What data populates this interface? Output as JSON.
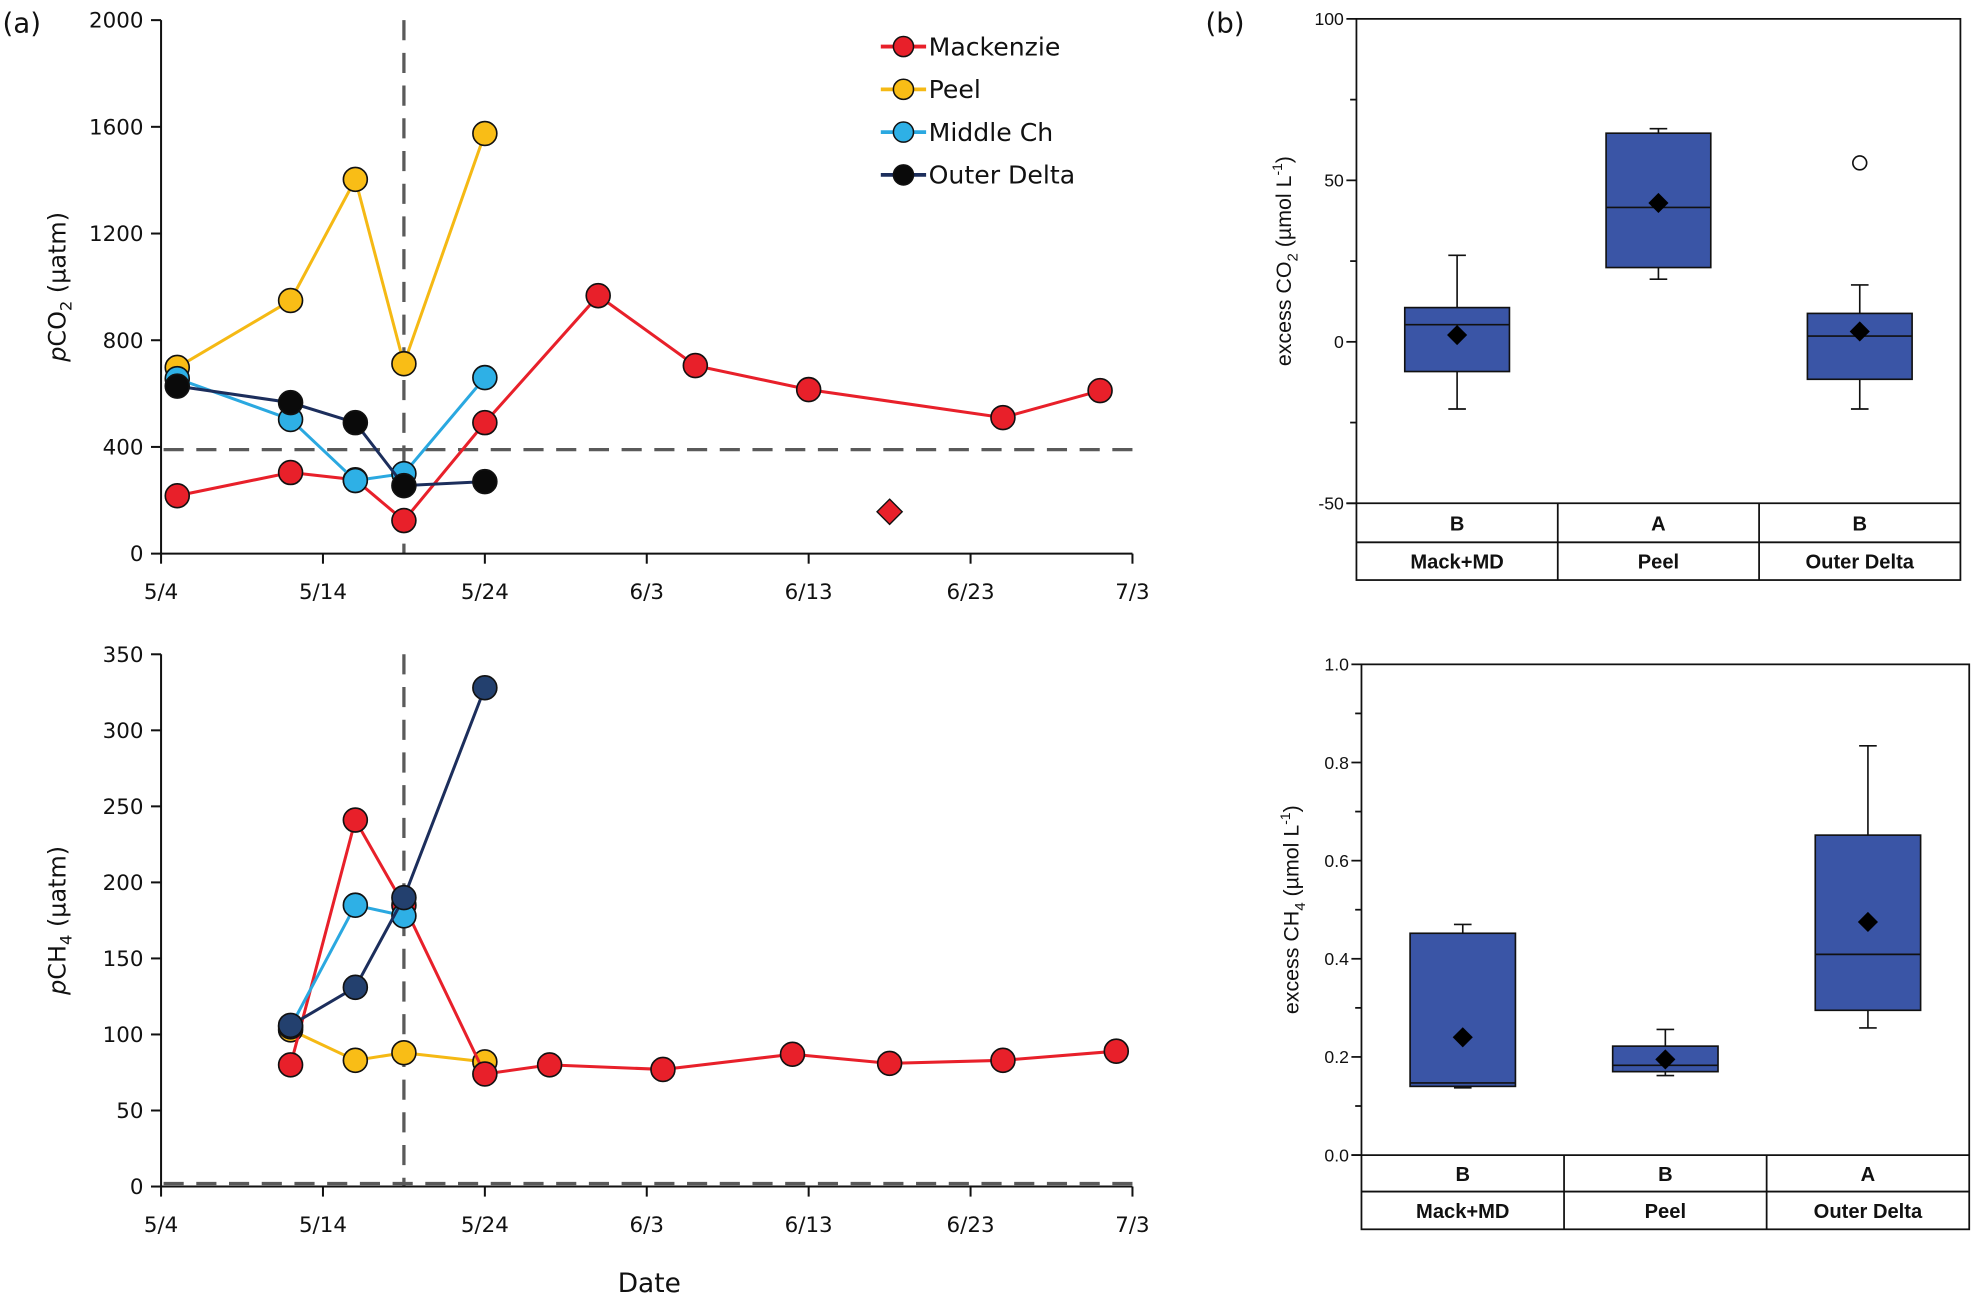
{
  "figure": {
    "panel_a_label": "(a)",
    "panel_b_label": "(b)",
    "shared_xlabel": "Date"
  },
  "chart_data": [
    {
      "id": "pco2",
      "type": "line",
      "title": "",
      "xlabel": "",
      "ylabel_prefix": "p",
      "ylabel_main": "CO",
      "ylabel_sub": "2",
      "ylabel_suffix": " (µatm)",
      "xlim_days": [
        0,
        60
      ],
      "x_origin": "5/4",
      "xticks": [
        {
          "day": 0,
          "label": "5/4"
        },
        {
          "day": 10,
          "label": "5/14"
        },
        {
          "day": 20,
          "label": "5/24"
        },
        {
          "day": 30,
          "label": "6/3"
        },
        {
          "day": 40,
          "label": "6/13"
        },
        {
          "day": 50,
          "label": "6/23"
        },
        {
          "day": 60,
          "label": "7/3"
        }
      ],
      "ylim": [
        0,
        2000
      ],
      "yticks": [
        0,
        400,
        800,
        1200,
        1600,
        2000
      ],
      "grid": false,
      "reference_lines": {
        "horizontal": 390,
        "vertical_day": 15
      },
      "legend": {
        "position": "top-right",
        "entries": [
          "Mackenzie",
          "Peel",
          "Middle Ch",
          "Outer Delta"
        ]
      },
      "series": [
        {
          "name": "Mackenzie",
          "color": "#e8202a",
          "line": "#e8202a",
          "points": [
            [
              1,
              217
            ],
            [
              8,
              304
            ],
            [
              12,
              277
            ],
            [
              15,
              124
            ],
            [
              20,
              491
            ],
            [
              27,
              967
            ],
            [
              33,
              705
            ],
            [
              40,
              615
            ],
            [
              52,
              510
            ],
            [
              58,
              611
            ]
          ]
        },
        {
          "name": "Peel",
          "color": "#f9bd16",
          "line": "#f5b914",
          "points": [
            [
              1,
              698
            ],
            [
              8,
              949
            ],
            [
              12,
              1403
            ],
            [
              15,
              712
            ],
            [
              20,
              1575
            ]
          ]
        },
        {
          "name": "Middle Ch",
          "color": "#2eb0e6",
          "line": "#2aa8e0",
          "points": [
            [
              1,
              656
            ],
            [
              8,
              503
            ],
            [
              12,
              274
            ],
            [
              15,
              300
            ],
            [
              20,
              660
            ]
          ]
        },
        {
          "name": "Outer Delta",
          "color": "#0a0a0a",
          "line": "#1c2e5c",
          "points": [
            [
              1,
              628
            ],
            [
              8,
              566
            ],
            [
              12,
              491
            ],
            [
              15,
              255
            ],
            [
              20,
              270
            ]
          ]
        }
      ],
      "extra_markers": [
        {
          "name": "Mackenzie diamond",
          "shape": "diamond",
          "color": "#e8202a",
          "day": 45,
          "value": 157
        }
      ]
    },
    {
      "id": "pch4",
      "type": "line",
      "title": "",
      "xlabel": "Date",
      "ylabel_prefix": "p",
      "ylabel_main": "CH",
      "ylabel_sub": "4",
      "ylabel_suffix": " (µatm)",
      "xlim_days": [
        0,
        60
      ],
      "x_origin": "5/4",
      "xticks": [
        {
          "day": 0,
          "label": "5/4"
        },
        {
          "day": 10,
          "label": "5/14"
        },
        {
          "day": 20,
          "label": "5/24"
        },
        {
          "day": 30,
          "label": "6/3"
        },
        {
          "day": 40,
          "label": "6/13"
        },
        {
          "day": 50,
          "label": "6/23"
        },
        {
          "day": 60,
          "label": "7/3"
        }
      ],
      "ylim": [
        0,
        350
      ],
      "yticks": [
        0,
        50,
        100,
        150,
        200,
        250,
        300,
        350
      ],
      "grid": false,
      "reference_lines": {
        "horizontal": 2,
        "vertical_day": 15
      },
      "series": [
        {
          "name": "Peel",
          "color": "#f9bd16",
          "line": "#f5b914",
          "points": [
            [
              8,
              103
            ],
            [
              12,
              83
            ],
            [
              15,
              88
            ],
            [
              20,
              82
            ]
          ]
        },
        {
          "name": "Mackenzie",
          "color": "#e8202a",
          "line": "#e8202a",
          "points": [
            [
              8,
              80
            ],
            [
              12,
              241
            ],
            [
              15,
              185
            ],
            [
              20,
              74
            ],
            [
              24,
              80
            ],
            [
              31,
              77
            ],
            [
              39,
              87
            ],
            [
              45,
              81
            ],
            [
              52,
              83
            ],
            [
              59,
              89
            ]
          ]
        },
        {
          "name": "Middle Ch",
          "color": "#2eb0e6",
          "line": "#2aa8e0",
          "points": [
            [
              8,
              105
            ],
            [
              12,
              185
            ],
            [
              15,
              178
            ]
          ]
        },
        {
          "name": "Outer Delta",
          "color": "#23406e",
          "line": "#1c2e5c",
          "points": [
            [
              8,
              106
            ],
            [
              12,
              131
            ],
            [
              15,
              190
            ],
            [
              20,
              328
            ]
          ]
        }
      ]
    },
    {
      "id": "excess_co2",
      "type": "box",
      "ylabel_main": "excess CO",
      "ylabel_sub": "2",
      "ylabel_suffix": " (µmol L",
      "ylabel_sup": "-1",
      "ylabel_close": ")",
      "ylim": [
        -50,
        100
      ],
      "yticks": [
        -50,
        0,
        50,
        100
      ],
      "minor_step": 25,
      "box_color": "#3a55a6",
      "categories": [
        "Mack+MD",
        "Peel",
        "Outer Delta"
      ],
      "letters": [
        "B",
        "A",
        "B"
      ],
      "boxes": [
        {
          "whisker_low": -20.8,
          "q1": -9.2,
          "median": 5.3,
          "q3": 10.6,
          "whisker_high": 26.8,
          "mean": 2.1,
          "outliers": []
        },
        {
          "whisker_low": 19.4,
          "q1": 23.0,
          "median": 41.6,
          "q3": 64.6,
          "whisker_high": 66.0,
          "mean": 43.0,
          "outliers": []
        },
        {
          "whisker_low": -20.8,
          "q1": -11.6,
          "median": 1.8,
          "q3": 8.8,
          "whisker_high": 17.6,
          "mean": 3.2,
          "outliers": [
            55.4
          ]
        }
      ]
    },
    {
      "id": "excess_ch4",
      "type": "box",
      "ylabel_main": "excess CH",
      "ylabel_sub": "4",
      "ylabel_suffix": " (µmol L",
      "ylabel_sup": "-1",
      "ylabel_close": ")",
      "ylim": [
        0.0,
        1.0
      ],
      "yticks": [
        0.0,
        0.2,
        0.4,
        0.6,
        0.8,
        1.0
      ],
      "ytick_labels": [
        "0.0",
        "0.2",
        "0.4",
        "0.6",
        "0.8",
        "1.0"
      ],
      "minor_step": 0.1,
      "box_color": "#3a55a6",
      "categories": [
        "Mack+MD",
        "Peel",
        "Outer Delta"
      ],
      "letters": [
        "B",
        "B",
        "A"
      ],
      "boxes": [
        {
          "whisker_low": 0.137,
          "q1": 0.14,
          "median": 0.147,
          "q3": 0.452,
          "whisker_high": 0.47,
          "mean": 0.24,
          "outliers": []
        },
        {
          "whisker_low": 0.162,
          "q1": 0.17,
          "median": 0.183,
          "q3": 0.222,
          "whisker_high": 0.256,
          "mean": 0.195,
          "outliers": []
        },
        {
          "whisker_low": 0.259,
          "q1": 0.295,
          "median": 0.409,
          "q3": 0.652,
          "whisker_high": 0.834,
          "mean": 0.475,
          "outliers": []
        }
      ]
    }
  ]
}
